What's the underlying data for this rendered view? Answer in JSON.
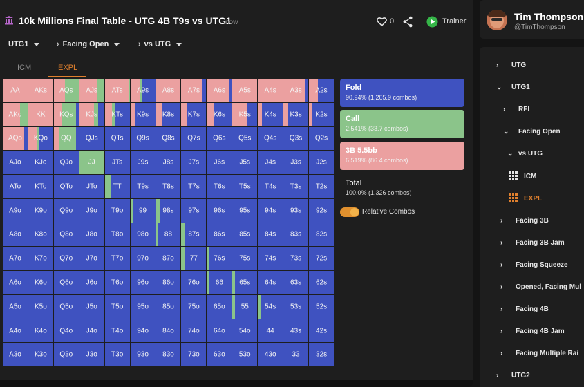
{
  "header": {
    "title": "10k Millions Final Table - UTG 4B T9s vs UTG1",
    "time": "now",
    "likes": "0",
    "trainer_label": "Trainer"
  },
  "breadcrumbs": [
    "UTG1",
    "Facing Open",
    "vs UTG"
  ],
  "tabs": {
    "icm": "ICM",
    "expl": "EXPL",
    "active": "EXPL"
  },
  "matrix": {
    "rows": [
      [
        "AA",
        "AKs",
        "AQs",
        "AJs",
        "ATs",
        "A9s",
        "A8s",
        "A7s",
        "A6s",
        "A5s",
        "A4s",
        "A3s",
        "A2s"
      ],
      [
        "AKo",
        "KK",
        "KQs",
        "KJs",
        "KTs",
        "K9s",
        "K8s",
        "K7s",
        "K6s",
        "K5s",
        "K4s",
        "K3s",
        "K2s"
      ],
      [
        "AQo",
        "KQo",
        "QQ",
        "QJs",
        "QTs",
        "Q9s",
        "Q8s",
        "Q7s",
        "Q6s",
        "Q5s",
        "Q4s",
        "Q3s",
        "Q2s"
      ],
      [
        "AJo",
        "KJo",
        "QJo",
        "JJ",
        "JTs",
        "J9s",
        "J8s",
        "J7s",
        "J6s",
        "J5s",
        "J4s",
        "J3s",
        "J2s"
      ],
      [
        "ATo",
        "KTo",
        "QTo",
        "JTo",
        "TT",
        "T9s",
        "T8s",
        "T7s",
        "T6s",
        "T5s",
        "T4s",
        "T3s",
        "T2s"
      ],
      [
        "A9o",
        "K9o",
        "Q9o",
        "J9o",
        "T9o",
        "99",
        "98s",
        "97s",
        "96s",
        "95s",
        "94s",
        "93s",
        "92s"
      ],
      [
        "A8o",
        "K8o",
        "Q8o",
        "J8o",
        "T8o",
        "98o",
        "88",
        "87s",
        "86s",
        "85s",
        "84s",
        "83s",
        "82s"
      ],
      [
        "A7o",
        "K7o",
        "Q7o",
        "J7o",
        "T7o",
        "97o",
        "87o",
        "77",
        "76s",
        "75s",
        "74s",
        "73s",
        "72s"
      ],
      [
        "A6o",
        "K6o",
        "Q6o",
        "J6o",
        "T6o",
        "96o",
        "86o",
        "76o",
        "66",
        "65s",
        "64s",
        "63s",
        "62s"
      ],
      [
        "A5o",
        "K5o",
        "Q5o",
        "J5o",
        "T5o",
        "95o",
        "85o",
        "75o",
        "65o",
        "55",
        "54s",
        "53s",
        "52s"
      ],
      [
        "A4o",
        "K4o",
        "Q4o",
        "J4o",
        "T4o",
        "94o",
        "84o",
        "74o",
        "64o",
        "54o",
        "44",
        "43s",
        "42s"
      ],
      [
        "A3o",
        "K3o",
        "Q3o",
        "J3o",
        "T3o",
        "93o",
        "83o",
        "73o",
        "63o",
        "53o",
        "43o",
        "33",
        "32s"
      ]
    ],
    "mixes": {
      "AA": [
        0,
        0,
        1
      ],
      "AKs": [
        0,
        0,
        1
      ],
      "AQs": [
        0,
        0.55,
        0.45
      ],
      "AJs": [
        0,
        0.3,
        0.7
      ],
      "ATs": [
        0,
        0.05,
        0.95
      ],
      "A9s": [
        0.55,
        0.05,
        0.4
      ],
      "A8s": [
        0,
        0,
        1
      ],
      "A7s": [
        0.15,
        0,
        0.85
      ],
      "A6s": [
        0.1,
        0,
        0.9
      ],
      "A5s": [
        0,
        0,
        1
      ],
      "A4s": [
        0,
        0,
        1
      ],
      "A3s": [
        0.1,
        0,
        0.9
      ],
      "A2s": [
        0.65,
        0,
        0.35
      ],
      "AKo": [
        0,
        0.3,
        0.7
      ],
      "KK": [
        0,
        0,
        1
      ],
      "KQs": [
        0.1,
        0.6,
        0.3
      ],
      "KJs": [
        0.25,
        0.15,
        0.6
      ],
      "KTs": [
        0.6,
        0.1,
        0.3
      ],
      "K9s": [
        0.8,
        0,
        0.2
      ],
      "K8s": [
        0.75,
        0,
        0.25
      ],
      "K7s": [
        0.8,
        0,
        0.2
      ],
      "K6s": [
        0.7,
        0,
        0.3
      ],
      "K5s": [
        0.4,
        0,
        0.6
      ],
      "K4s": [
        0.85,
        0,
        0.15
      ],
      "K3s": [
        0.85,
        0,
        0.15
      ],
      "K2s": [
        0.9,
        0,
        0.1
      ],
      "AQo": [
        0.15,
        0,
        0.85
      ],
      "KQo": [
        0.55,
        0.1,
        0.35
      ],
      "QQ": [
        0.1,
        0.7,
        0.2
      ],
      "JJ": [
        0,
        1,
        0
      ],
      "TT": [
        0.75,
        0.25,
        0
      ],
      "99": [
        0.9,
        0.1,
        0
      ],
      "88": [
        0.9,
        0.1,
        0
      ],
      "77": [
        0.85,
        0.15,
        0
      ],
      "66": [
        0.9,
        0.1,
        0
      ],
      "55": [
        0.9,
        0.1,
        0
      ],
      "98s": [
        0.85,
        0.15,
        0
      ],
      "87s": [
        0.85,
        0.15,
        0
      ],
      "76s": [
        0.9,
        0.1,
        0
      ],
      "65s": [
        0.9,
        0.1,
        0
      ],
      "54s": [
        0.9,
        0.1,
        0
      ]
    }
  },
  "legend": {
    "fold": {
      "name": "Fold",
      "stat": "90.94% (1,205.9 combos)"
    },
    "call": {
      "name": "Call",
      "stat": "2.541% (33.7 combos)"
    },
    "threebet": {
      "name": "3B 5.5bb",
      "stat": "6.519% (86.4 combos)"
    },
    "total": {
      "name": "Total",
      "stat": "100.0% (1,326 combos)"
    },
    "toggle_label": "Relative Combos",
    "toggle_on": true
  },
  "colors": {
    "fold": "#3f52c0",
    "call": "#8bc48a",
    "threebet": "#eba0a0",
    "accent": "#e0802e"
  },
  "profile": {
    "name": "Tim Thompson",
    "handle": "@TimThompson"
  },
  "tree": [
    {
      "label": "UTG",
      "icon": "chevron-right-icon"
    },
    {
      "label": "UTG1",
      "icon": "chevron-down-icon"
    },
    {
      "label": "RFI",
      "icon": "chevron-right-icon"
    },
    {
      "label": "Facing Open",
      "icon": "chevron-down-icon"
    },
    {
      "label": "vs UTG",
      "icon": "chevron-down-icon"
    },
    {
      "label": "ICM",
      "icon": "grid-icon"
    },
    {
      "label": "EXPL",
      "icon": "grid-icon"
    },
    {
      "label": "Facing 3B",
      "icon": "chevron-right-icon"
    },
    {
      "label": "Facing 3B Jam",
      "icon": "chevron-right-icon"
    },
    {
      "label": "Facing Squeeze",
      "icon": "chevron-right-icon"
    },
    {
      "label": "Opened, Facing Mul",
      "icon": "chevron-right-icon"
    },
    {
      "label": "Facing 4B",
      "icon": "chevron-right-icon"
    },
    {
      "label": "Facing 4B Jam",
      "icon": "chevron-right-icon"
    },
    {
      "label": "Facing Multiple Rai",
      "icon": "chevron-right-icon"
    },
    {
      "label": "UTG2",
      "icon": "chevron-right-icon"
    }
  ]
}
